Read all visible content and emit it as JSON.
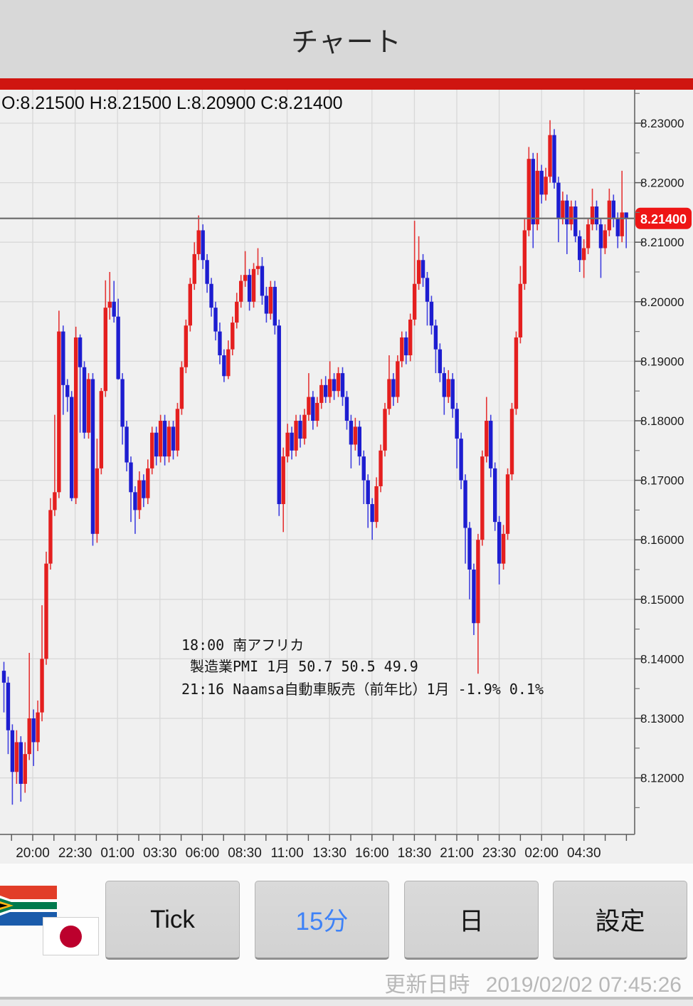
{
  "header": {
    "title": "チャート"
  },
  "chart_data": {
    "type": "candlestick",
    "timeframe": "15分",
    "ohlc_readout": "O:8.21500 H:8.21500 L:8.20900 C:8.21400",
    "current_price": 8.214,
    "current_price_label": "8.21400",
    "y_axis": {
      "ticks": [
        {
          "label": "8.23000",
          "value": 8.23
        },
        {
          "label": "8.22000",
          "value": 8.22
        },
        {
          "label": "8.21000",
          "value": 8.21
        },
        {
          "label": "8.20000",
          "value": 8.2
        },
        {
          "label": "8.19000",
          "value": 8.19
        },
        {
          "label": "8.18000",
          "value": 8.18
        },
        {
          "label": "8.17000",
          "value": 8.17
        },
        {
          "label": "8.16000",
          "value": 8.16
        },
        {
          "label": "8.15000",
          "value": 8.15
        },
        {
          "label": "8.14000",
          "value": 8.14
        },
        {
          "label": "8.13000",
          "value": 8.13
        },
        {
          "label": "8.12000",
          "value": 8.12
        }
      ]
    },
    "x_axis": {
      "ticks": [
        "20:00",
        "22:30",
        "01:00",
        "03:30",
        "06:00",
        "08:30",
        "11:00",
        "13:30",
        "16:00",
        "18:30",
        "21:00",
        "23:30",
        "02:00",
        "04:30"
      ]
    },
    "annotations": [
      {
        "text": "18:00 南アフリカ"
      },
      {
        "text": "製造業PMI 1月 50.7 50.5 49.9"
      },
      {
        "text": "21:16 Naamsa自動車販売（前年比）1月 -1.9% 0.1%"
      }
    ],
    "colors": {
      "up": "#e41f1f",
      "down": "#1d1dd0",
      "wick_up": "#e53535",
      "wick_down": "#4040df",
      "plot_bg": "#f0f0f0",
      "grid": "#d8d8d8",
      "axis": "#808080",
      "price_line": "#707070",
      "price_label_bg": "#ee1515",
      "price_label_text": "#ffffff",
      "text": "#1c1c1c"
    },
    "candles": [
      [
        8.138,
        8.1395,
        8.131,
        8.136
      ],
      [
        8.136,
        8.137,
        8.124,
        8.128
      ],
      [
        8.128,
        8.129,
        8.1155,
        8.121
      ],
      [
        8.121,
        8.128,
        8.119,
        8.126
      ],
      [
        8.126,
        8.127,
        8.116,
        8.119
      ],
      [
        8.119,
        8.126,
        8.1175,
        8.124
      ],
      [
        8.124,
        8.141,
        8.123,
        8.13
      ],
      [
        8.13,
        8.1315,
        8.122,
        8.126
      ],
      [
        8.126,
        8.133,
        8.1245,
        8.131
      ],
      [
        8.131,
        8.149,
        8.1295,
        8.14
      ],
      [
        8.14,
        8.158,
        8.139,
        8.156
      ],
      [
        8.156,
        8.167,
        8.155,
        8.165
      ],
      [
        8.165,
        8.181,
        8.164,
        8.168
      ],
      [
        8.168,
        8.1985,
        8.167,
        8.195
      ],
      [
        8.195,
        8.196,
        8.181,
        8.186
      ],
      [
        8.186,
        8.187,
        8.1815,
        8.184
      ],
      [
        8.184,
        8.185,
        8.1665,
        8.167
      ],
      [
        8.167,
        8.1958,
        8.166,
        8.194
      ],
      [
        8.194,
        8.1945,
        8.178,
        8.189
      ],
      [
        8.189,
        8.19,
        8.177,
        8.178
      ],
      [
        8.178,
        8.188,
        8.177,
        8.187
      ],
      [
        8.187,
        8.188,
        8.159,
        8.161
      ],
      [
        8.161,
        8.177,
        8.1595,
        8.172
      ],
      [
        8.172,
        8.1855,
        8.171,
        8.185
      ],
      [
        8.185,
        8.2036,
        8.184,
        8.199
      ],
      [
        8.199,
        8.205,
        8.197,
        8.2
      ],
      [
        8.2,
        8.2035,
        8.1965,
        8.1975
      ],
      [
        8.1975,
        8.2005,
        8.1869,
        8.187
      ],
      [
        8.187,
        8.188,
        8.176,
        8.179
      ],
      [
        8.179,
        8.18,
        8.1715,
        8.173
      ],
      [
        8.173,
        8.174,
        8.163,
        8.168
      ],
      [
        8.168,
        8.169,
        8.161,
        8.165
      ],
      [
        8.165,
        8.1715,
        8.1635,
        8.17
      ],
      [
        8.17,
        8.171,
        8.1655,
        8.167
      ],
      [
        8.167,
        8.1735,
        8.166,
        8.172
      ],
      [
        8.172,
        8.179,
        8.171,
        8.178
      ],
      [
        8.178,
        8.179,
        8.1725,
        8.174
      ],
      [
        8.174,
        8.181,
        8.173,
        8.18
      ],
      [
        8.18,
        8.181,
        8.1725,
        8.174
      ],
      [
        8.174,
        8.18,
        8.173,
        8.179
      ],
      [
        8.179,
        8.18,
        8.1735,
        8.175
      ],
      [
        8.175,
        8.183,
        8.174,
        8.182
      ],
      [
        8.182,
        8.19,
        8.181,
        8.189
      ],
      [
        8.189,
        8.197,
        8.188,
        8.196
      ],
      [
        8.196,
        8.204,
        8.195,
        8.203
      ],
      [
        8.203,
        8.21,
        8.202,
        8.208
      ],
      [
        8.208,
        8.2145,
        8.207,
        8.212
      ],
      [
        8.212,
        8.213,
        8.2055,
        8.207
      ],
      [
        8.207,
        8.208,
        8.2015,
        8.203
      ],
      [
        8.203,
        8.204,
        8.1975,
        8.199
      ],
      [
        8.199,
        8.2,
        8.1935,
        8.195
      ],
      [
        8.195,
        8.1965,
        8.1895,
        8.191
      ],
      [
        8.191,
        8.192,
        8.1865,
        8.1875
      ],
      [
        8.1875,
        8.1935,
        8.187,
        8.192
      ],
      [
        8.192,
        8.1975,
        8.191,
        8.1965
      ],
      [
        8.1965,
        8.2015,
        8.1955,
        8.2
      ],
      [
        8.2,
        8.2045,
        8.199,
        8.2035
      ],
      [
        8.2035,
        8.2085,
        8.2025,
        8.2045
      ],
      [
        8.2045,
        8.2055,
        8.1985,
        8.2
      ],
      [
        8.2,
        8.2065,
        8.199,
        8.2055
      ],
      [
        8.2055,
        8.209,
        8.2045,
        8.206
      ],
      [
        8.206,
        8.2075,
        8.1995,
        8.201
      ],
      [
        8.201,
        8.2025,
        8.1965,
        8.198
      ],
      [
        8.198,
        8.2035,
        8.197,
        8.2025
      ],
      [
        8.2025,
        8.2035,
        8.1945,
        8.196
      ],
      [
        8.196,
        8.197,
        8.164,
        8.166
      ],
      [
        8.166,
        8.1755,
        8.1613,
        8.174
      ],
      [
        8.174,
        8.1795,
        8.173,
        8.178
      ],
      [
        8.178,
        8.179,
        8.1735,
        8.175
      ],
      [
        8.175,
        8.181,
        8.174,
        8.18
      ],
      [
        8.18,
        8.181,
        8.1755,
        8.177
      ],
      [
        8.177,
        8.182,
        8.176,
        8.181
      ],
      [
        8.181,
        8.188,
        8.18,
        8.184
      ],
      [
        8.184,
        8.185,
        8.1785,
        8.18
      ],
      [
        8.18,
        8.184,
        8.179,
        8.183
      ],
      [
        8.183,
        8.187,
        8.182,
        8.186
      ],
      [
        8.186,
        8.1875,
        8.183,
        8.184
      ],
      [
        8.184,
        8.19,
        8.183,
        8.187
      ],
      [
        8.187,
        8.188,
        8.1835,
        8.185
      ],
      [
        8.185,
        8.189,
        8.184,
        8.188
      ],
      [
        8.188,
        8.189,
        8.1825,
        8.184
      ],
      [
        8.184,
        8.185,
        8.1785,
        8.18
      ],
      [
        8.18,
        8.181,
        8.172,
        8.176
      ],
      [
        8.176,
        8.1805,
        8.175,
        8.179
      ],
      [
        8.179,
        8.18,
        8.1725,
        8.174
      ],
      [
        8.174,
        8.175,
        8.166,
        8.17
      ],
      [
        8.17,
        8.171,
        8.162,
        8.166
      ],
      [
        8.166,
        8.167,
        8.16,
        8.163
      ],
      [
        8.163,
        8.1705,
        8.162,
        8.169
      ],
      [
        8.169,
        8.176,
        8.168,
        8.175
      ],
      [
        8.175,
        8.183,
        8.174,
        8.182
      ],
      [
        8.182,
        8.191,
        8.181,
        8.187
      ],
      [
        8.187,
        8.188,
        8.1825,
        8.184
      ],
      [
        8.184,
        8.191,
        8.183,
        8.19
      ],
      [
        8.19,
        8.195,
        8.189,
        8.194
      ],
      [
        8.194,
        8.195,
        8.1895,
        8.191
      ],
      [
        8.191,
        8.198,
        8.19,
        8.197
      ],
      [
        8.197,
        8.2136,
        8.196,
        8.203
      ],
      [
        8.203,
        8.211,
        8.202,
        8.207
      ],
      [
        8.207,
        8.208,
        8.2025,
        8.204
      ],
      [
        8.204,
        8.205,
        8.196,
        8.2
      ],
      [
        8.2,
        8.201,
        8.1945,
        8.196
      ],
      [
        8.196,
        8.197,
        8.188,
        8.192
      ],
      [
        8.192,
        8.193,
        8.1865,
        8.188
      ],
      [
        8.188,
        8.189,
        8.181,
        8.184
      ],
      [
        8.184,
        8.1885,
        8.183,
        8.187
      ],
      [
        8.187,
        8.188,
        8.1805,
        8.182
      ],
      [
        8.182,
        8.183,
        8.172,
        8.177
      ],
      [
        8.177,
        8.178,
        8.1685,
        8.17
      ],
      [
        8.17,
        8.171,
        8.156,
        8.162
      ],
      [
        8.162,
        8.163,
        8.15,
        8.155
      ],
      [
        8.155,
        8.156,
        8.144,
        8.146
      ],
      [
        8.146,
        8.161,
        8.1375,
        8.16
      ],
      [
        8.16,
        8.175,
        8.159,
        8.174
      ],
      [
        8.174,
        8.184,
        8.173,
        8.18
      ],
      [
        8.18,
        8.181,
        8.1705,
        8.172
      ],
      [
        8.172,
        8.173,
        8.1615,
        8.163
      ],
      [
        8.163,
        8.164,
        8.1525,
        8.156
      ],
      [
        8.156,
        8.1625,
        8.155,
        8.161
      ],
      [
        8.161,
        8.172,
        8.16,
        8.171
      ],
      [
        8.171,
        8.183,
        8.17,
        8.182
      ],
      [
        8.182,
        8.195,
        8.181,
        8.194
      ],
      [
        8.194,
        8.206,
        8.193,
        8.203
      ],
      [
        8.203,
        8.214,
        8.202,
        8.212
      ],
      [
        8.212,
        8.226,
        8.211,
        8.224
      ],
      [
        8.224,
        8.225,
        8.209,
        8.213
      ],
      [
        8.213,
        8.225,
        8.212,
        8.222
      ],
      [
        8.222,
        8.223,
        8.2165,
        8.218
      ],
      [
        8.218,
        8.2225,
        8.217,
        8.221
      ],
      [
        8.221,
        8.2305,
        8.22,
        8.228
      ],
      [
        8.228,
        8.229,
        8.219,
        8.22
      ],
      [
        8.22,
        8.221,
        8.21,
        8.214
      ],
      [
        8.214,
        8.2185,
        8.213,
        8.217
      ],
      [
        8.217,
        8.218,
        8.208,
        8.213
      ],
      [
        8.213,
        8.217,
        8.212,
        8.216
      ],
      [
        8.216,
        8.217,
        8.21,
        8.211
      ],
      [
        8.211,
        8.212,
        8.205,
        8.207
      ],
      [
        8.207,
        8.2105,
        8.204,
        8.209
      ],
      [
        8.209,
        8.214,
        8.208,
        8.213
      ],
      [
        8.213,
        8.219,
        8.212,
        8.216
      ],
      [
        8.216,
        8.217,
        8.212,
        8.213
      ],
      [
        8.213,
        8.214,
        8.204,
        8.209
      ],
      [
        8.209,
        8.213,
        8.208,
        8.212
      ],
      [
        8.212,
        8.219,
        8.211,
        8.217
      ],
      [
        8.217,
        8.218,
        8.2125,
        8.214
      ],
      [
        8.214,
        8.215,
        8.209,
        8.211
      ],
      [
        8.211,
        8.222,
        8.21,
        8.215
      ],
      [
        8.215,
        8.215,
        8.209,
        8.214
      ]
    ]
  },
  "toolbar": {
    "buttons": [
      {
        "label": "Tick",
        "active": false
      },
      {
        "label": "15分",
        "active": true
      },
      {
        "label": "日",
        "active": false
      },
      {
        "label": "設定",
        "active": false
      }
    ],
    "active_color": "#3e82f7"
  },
  "status": {
    "updated_prefix": "更新日時",
    "updated_at": "2019/02/02 07:45:26"
  }
}
